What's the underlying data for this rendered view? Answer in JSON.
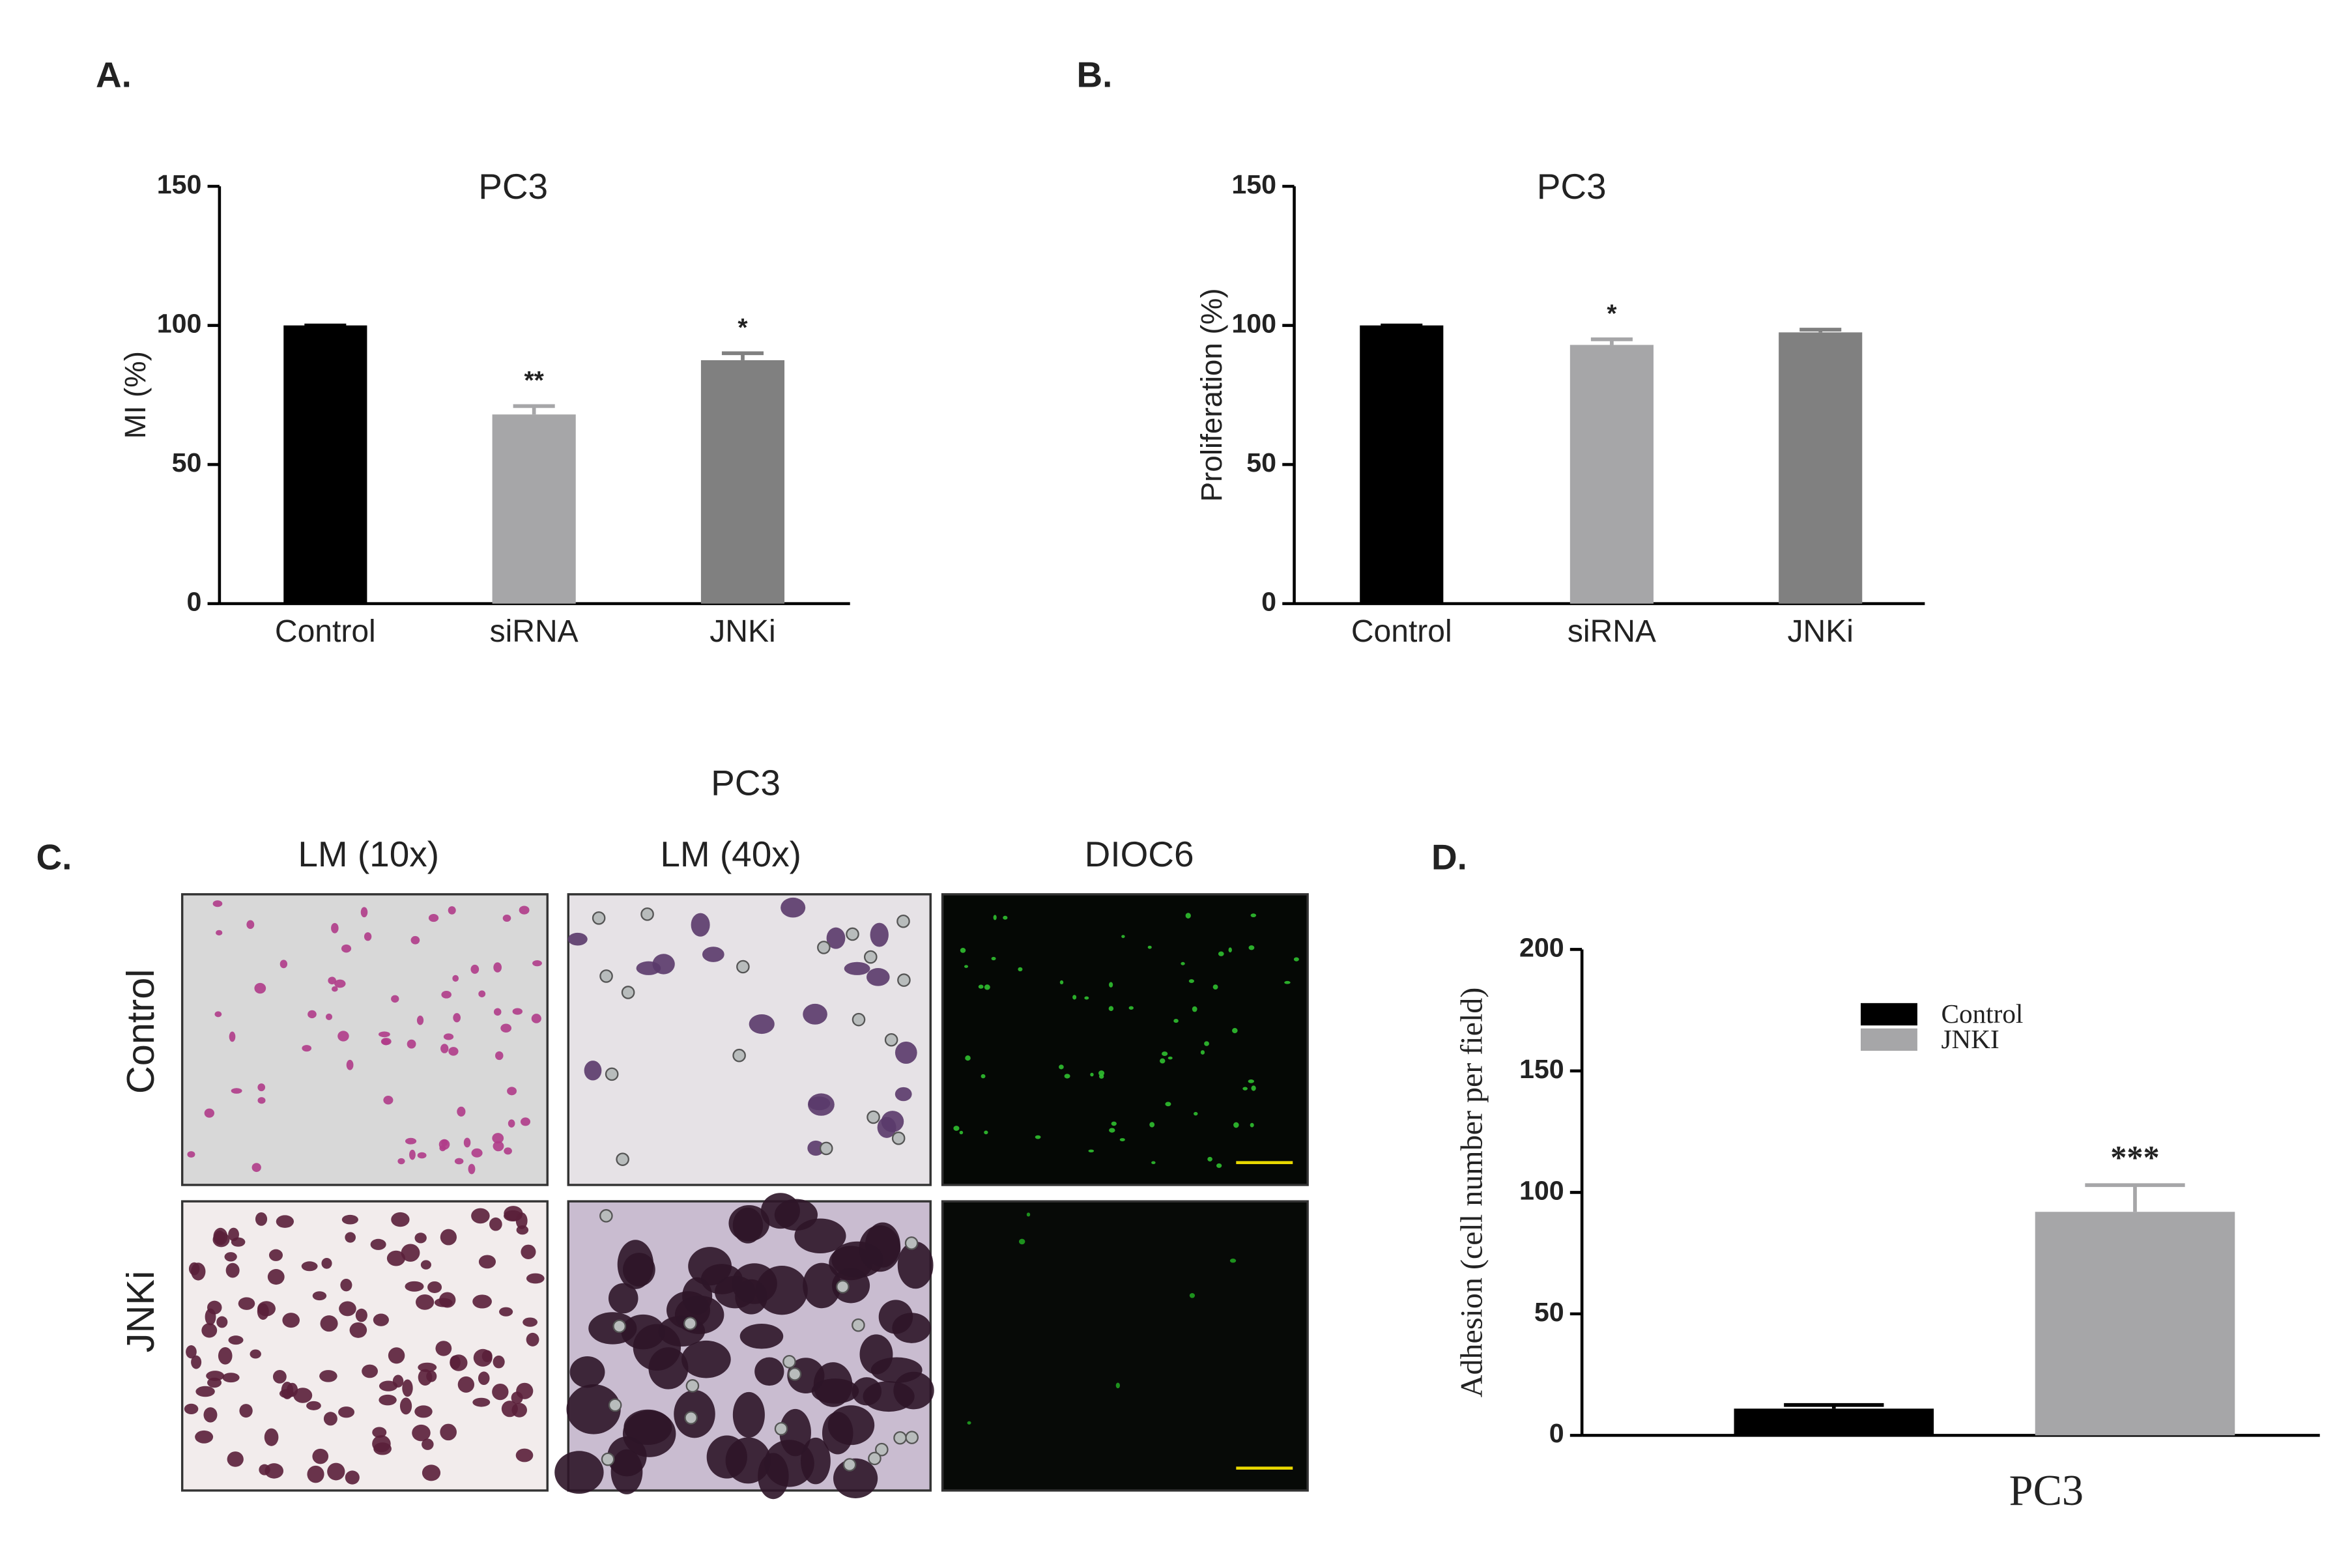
{
  "chart_data": [
    {
      "type": "bar",
      "panel_label": "A.",
      "title": "PC3",
      "ylabel": "MI (%)",
      "categories": [
        "Control",
        "siRNA",
        "JNKi"
      ],
      "values": [
        100,
        68,
        87.5
      ],
      "errors": [
        0,
        3,
        2.5
      ],
      "colors": [
        "#000000",
        "#a6a6a8",
        "#808080"
      ],
      "significance": [
        null,
        "**",
        "*"
      ],
      "ylim": [
        0,
        150
      ],
      "yticks": [
        0,
        50,
        100,
        150
      ]
    },
    {
      "type": "bar",
      "panel_label": "B.",
      "title": "PC3",
      "ylabel": "Proliferation (%)",
      "categories": [
        "Control",
        "siRNA",
        "JNKi"
      ],
      "values": [
        100,
        93,
        97.5
      ],
      "errors": [
        0,
        2,
        1
      ],
      "colors": [
        "#000000",
        "#a6a6a8",
        "#808080"
      ],
      "significance": [
        null,
        "*",
        null
      ],
      "ylim": [
        0,
        150
      ],
      "yticks": [
        0,
        50,
        100,
        150
      ]
    },
    {
      "type": "bar",
      "panel_label": "D.",
      "ylabel": "Adhesion (cell number per field)",
      "categories": [
        "PC3"
      ],
      "series": [
        {
          "name": "Control",
          "color": "#000000",
          "values": [
            11
          ],
          "errors": [
            1.5
          ],
          "significance": [
            null
          ]
        },
        {
          "name": "JNKI",
          "color": "#a6a6a8",
          "values": [
            92
          ],
          "errors": [
            11
          ],
          "significance": [
            "***"
          ]
        }
      ],
      "ylim": [
        0,
        200
      ],
      "yticks": [
        0,
        50,
        100,
        150,
        200
      ]
    }
  ],
  "panel_c": {
    "panel_label": "C.",
    "title": "PC3",
    "columns": [
      "LM (10x)",
      "LM (40x)",
      "DIOC6"
    ],
    "rows": [
      "Control",
      "JNKi"
    ]
  }
}
